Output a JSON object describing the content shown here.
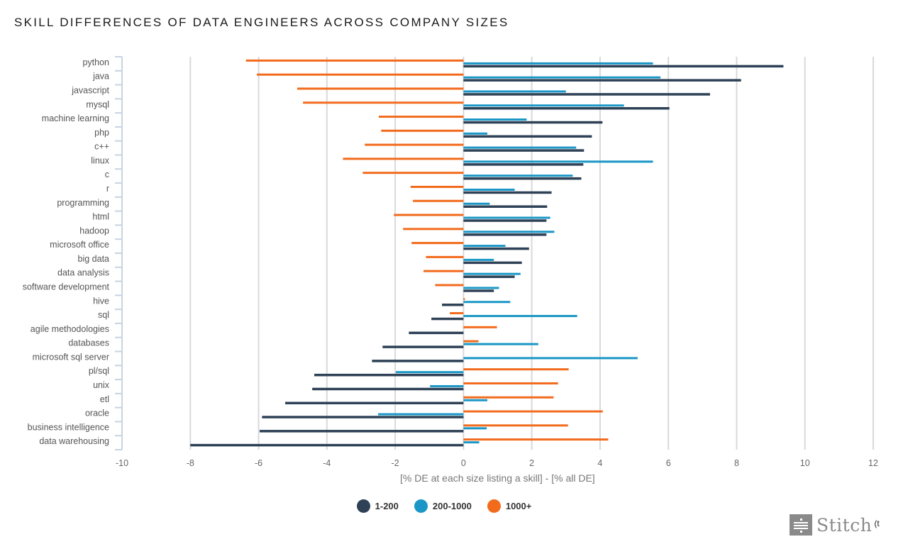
{
  "title": "SKILL DIFFERENCES OF DATA ENGINEERS ACROSS COMPANY SIZES",
  "brand": {
    "name": "Stitch",
    "suffix": "(t",
    "icon": "stitch-logo-icon"
  },
  "chart_data": {
    "type": "bar",
    "orientation": "horizontal",
    "title": "SKILL DIFFERENCES OF DATA ENGINEERS ACROSS COMPANY SIZES",
    "xlabel": "[% DE at each size listing a skill] - [% all DE]",
    "ylabel": "",
    "xlim": [
      -10,
      12
    ],
    "xticks": [
      -10,
      -8,
      -6,
      -4,
      -2,
      0,
      2,
      4,
      6,
      8,
      10,
      12
    ],
    "grid": true,
    "legend_position": "bottom-center",
    "categories": [
      "python",
      "java",
      "javascript",
      "mysql",
      "machine learning",
      "php",
      "c++",
      "linux",
      "c",
      "r",
      "programming",
      "html",
      "hadoop",
      "microsoft office",
      "big data",
      "data analysis",
      "software development",
      "hive",
      "sql",
      "agile methodologies",
      "databases",
      "microsoft sql server",
      "pl/sql",
      "unix",
      "etl",
      "oracle",
      "business intelligence",
      "data warehousing"
    ],
    "series": [
      {
        "name": "1000+",
        "color": "#f26b1d",
        "values": [
          -6.37,
          -6.05,
          -4.87,
          -4.7,
          -2.48,
          -2.41,
          -2.89,
          -3.53,
          -2.95,
          -1.55,
          -1.48,
          -2.04,
          -1.77,
          -1.52,
          -1.1,
          -1.17,
          -0.83,
          0.04,
          -0.4,
          0.98,
          0.44,
          0.0,
          3.08,
          2.77,
          2.64,
          4.08,
          3.06,
          4.24
        ]
      },
      {
        "name": "200-1000",
        "color": "#1a97c6",
        "values": [
          5.55,
          5.77,
          3.0,
          4.7,
          1.85,
          0.7,
          3.3,
          5.55,
          3.2,
          1.5,
          0.77,
          2.54,
          2.66,
          1.23,
          0.89,
          1.67,
          1.04,
          1.37,
          3.33,
          0.0,
          2.19,
          5.1,
          -1.98,
          -0.98,
          0.7,
          -2.5,
          0.68,
          0.46
        ]
      },
      {
        "name": "1-200",
        "color": "#2e4156",
        "values": [
          9.37,
          8.13,
          7.22,
          6.03,
          4.07,
          3.76,
          3.53,
          3.51,
          3.45,
          2.58,
          2.45,
          2.43,
          2.43,
          1.92,
          1.71,
          1.5,
          0.89,
          -0.63,
          -0.94,
          -1.6,
          -2.37,
          -2.68,
          -4.37,
          -4.43,
          -5.22,
          -5.9,
          -5.97,
          -8.0
        ]
      }
    ],
    "legend": [
      {
        "name": "1-200",
        "color": "#2e4156"
      },
      {
        "name": "200-1000",
        "color": "#1a97c6"
      },
      {
        "name": "1000+",
        "color": "#f26b1d"
      }
    ]
  }
}
